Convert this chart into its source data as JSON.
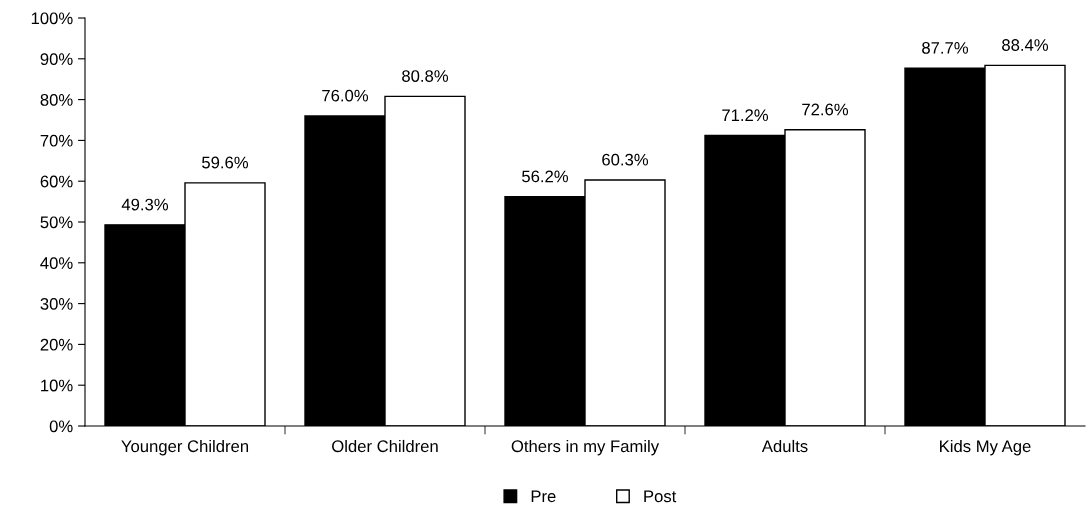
{
  "chart_data": {
    "type": "bar",
    "categories": [
      "Younger Children",
      "Older Children",
      "Others in my Family",
      "Adults",
      "Kids My Age"
    ],
    "series": [
      {
        "name": "Pre",
        "color": "#000000",
        "values": [
          49.3,
          76.0,
          56.2,
          71.2,
          87.7
        ],
        "value_labels": [
          "49.3%",
          "76.0%",
          "56.2%",
          "71.2%",
          "87.7%"
        ]
      },
      {
        "name": "Post",
        "color": "#ffffff",
        "values": [
          59.6,
          80.8,
          60.3,
          72.6,
          88.4
        ],
        "value_labels": [
          "59.6%",
          "80.8%",
          "60.3%",
          "72.6%",
          "88.4%"
        ]
      }
    ],
    "ylim": [
      0,
      100
    ],
    "yticks": [
      {
        "value": 0,
        "label": "0%"
      },
      {
        "value": 10,
        "label": "10%"
      },
      {
        "value": 20,
        "label": "20%"
      },
      {
        "value": 30,
        "label": "30%"
      },
      {
        "value": 40,
        "label": "40%"
      },
      {
        "value": 50,
        "label": "50%"
      },
      {
        "value": 60,
        "label": "60%"
      },
      {
        "value": 70,
        "label": "70%"
      },
      {
        "value": 80,
        "label": "80%"
      },
      {
        "value": 90,
        "label": "90%"
      },
      {
        "value": 100,
        "label": "100%"
      }
    ],
    "grid": false,
    "legend": "bottom"
  }
}
